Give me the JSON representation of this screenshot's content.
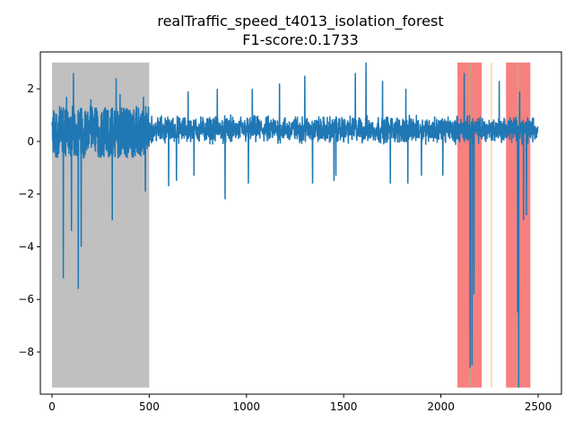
{
  "chart_data": {
    "type": "line",
    "title": "realTraffic_speed_t4013_isolation_forest",
    "subtitle": "F1-score:0.1733",
    "xlabel": "",
    "ylabel": "",
    "xlim": [
      -60,
      2620
    ],
    "ylim": [
      -9.6,
      3.4
    ],
    "x_ticks": [
      0,
      500,
      1000,
      1500,
      2000,
      2500
    ],
    "y_ticks": [
      2,
      0,
      -2,
      -4,
      -6,
      -8
    ],
    "grid": false,
    "line_color": "#1f77b4",
    "regions": [
      {
        "kind": "training",
        "x0": 0,
        "x1": 500,
        "y0": -9.35,
        "y1": 3.0,
        "color": "#c0c0c0"
      },
      {
        "kind": "anomaly-window",
        "x0": 2085,
        "x1": 2210,
        "y0": -9.35,
        "y1": 3.0,
        "color": "#f88080"
      },
      {
        "kind": "anomaly-window",
        "x0": 2335,
        "x1": 2460,
        "y0": -9.35,
        "y1": 3.0,
        "color": "#f88080"
      }
    ],
    "markers": [
      {
        "x": 2150,
        "color": "#90c878"
      },
      {
        "x": 2260,
        "color": "#f5c060"
      },
      {
        "x": 2395,
        "color": "#90c878"
      }
    ],
    "series": [
      {
        "generator": "approximate-series",
        "n": 2500,
        "base": 0.45,
        "noise": 0.35,
        "spikes_down": [
          [
            58,
            -5.2
          ],
          [
            100,
            -3.4
          ],
          [
            135,
            -5.6
          ],
          [
            150,
            -4.0
          ],
          [
            110,
            -3.0
          ],
          [
            310,
            -3.0
          ],
          [
            480,
            -1.9
          ],
          [
            600,
            -1.7
          ],
          [
            640,
            -1.5
          ],
          [
            730,
            -1.3
          ],
          [
            890,
            -2.2
          ],
          [
            1010,
            -1.6
          ],
          [
            1340,
            -1.6
          ],
          [
            1450,
            -1.5
          ],
          [
            1460,
            -1.3
          ],
          [
            1740,
            -1.6
          ],
          [
            1830,
            -1.6
          ],
          [
            1900,
            -1.3
          ],
          [
            2010,
            -1.3
          ],
          [
            2150,
            -8.6
          ],
          [
            2160,
            -8.5
          ],
          [
            2170,
            -5.8
          ],
          [
            2400,
            -9.35
          ],
          [
            2395,
            -6.5
          ],
          [
            2425,
            -3.0
          ],
          [
            2440,
            -2.8
          ]
        ],
        "spikes_up": [
          [
            75,
            1.7
          ],
          [
            110,
            2.6
          ],
          [
            200,
            1.6
          ],
          [
            330,
            2.4
          ],
          [
            350,
            1.8
          ],
          [
            470,
            1.7
          ],
          [
            700,
            1.9
          ],
          [
            850,
            2.0
          ],
          [
            1030,
            2.0
          ],
          [
            1170,
            2.2
          ],
          [
            1300,
            2.5
          ],
          [
            1560,
            2.6
          ],
          [
            1615,
            3.0
          ],
          [
            1700,
            2.3
          ],
          [
            1820,
            2.0
          ],
          [
            2120,
            2.6
          ],
          [
            2300,
            2.3
          ],
          [
            2405,
            1.9
          ]
        ]
      }
    ]
  }
}
